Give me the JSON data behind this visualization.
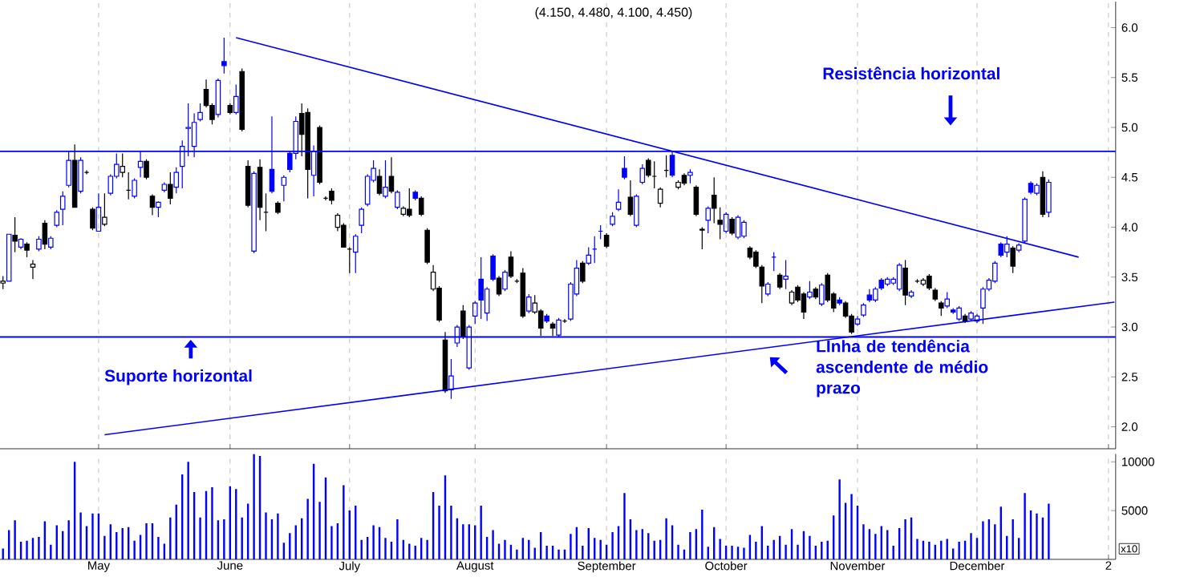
{
  "chart_data": [
    {
      "type": "candlestick",
      "title": "(4.150, 4.480, 4.100, 4.450)",
      "categories": [
        null,
        null,
        null,
        null,
        null,
        null,
        null,
        null,
        null,
        null,
        null,
        null,
        null,
        null,
        null,
        null,
        null,
        null,
        null,
        null,
        null,
        null,
        null,
        null,
        null,
        null,
        null,
        null,
        null,
        null,
        null,
        null,
        null,
        null,
        null,
        null,
        null,
        null,
        null,
        null,
        null,
        null,
        null,
        null,
        null,
        null,
        null,
        null,
        null,
        null,
        null,
        null,
        null,
        null,
        null,
        null,
        null,
        null,
        null,
        null,
        null,
        null,
        null,
        null,
        null,
        null,
        null,
        null,
        null,
        null,
        null,
        null,
        null,
        null,
        null,
        null,
        null,
        null,
        null,
        null,
        null,
        null,
        null,
        null,
        null,
        null,
        null,
        null,
        null,
        null,
        null,
        null,
        null,
        null,
        null,
        null,
        null,
        null,
        null,
        null,
        null,
        null,
        null,
        null,
        null,
        null,
        null,
        null,
        null,
        null,
        null,
        null,
        null,
        null,
        null,
        null,
        null,
        null,
        null,
        null,
        null,
        null,
        null,
        null,
        null,
        null,
        null,
        null,
        null,
        null,
        null,
        null,
        null,
        null,
        null,
        null,
        null,
        null,
        null,
        null,
        null,
        null,
        null,
        null,
        null,
        null,
        null,
        null,
        null,
        null,
        null,
        null,
        null,
        null,
        null,
        null,
        null,
        null,
        null,
        null,
        null,
        null,
        null,
        null,
        null,
        null,
        null,
        null,
        null,
        null,
        null,
        null,
        null,
        null,
        null,
        null,
        null,
        null,
        null,
        null,
        null,
        null,
        null,
        null,
        null,
        null,
        null
      ],
      "ohlc": [
        [
          3.44,
          3.51,
          3.38,
          3.46
        ],
        [
          3.46,
          3.93,
          3.46,
          3.93
        ],
        [
          3.92,
          4.1,
          3.75,
          3.86
        ],
        [
          3.8,
          3.89,
          3.78,
          3.88
        ],
        [
          3.83,
          3.85,
          3.7,
          3.77
        ],
        [
          3.6,
          3.67,
          3.48,
          3.63
        ],
        [
          3.78,
          3.91,
          3.76,
          3.88
        ],
        [
          4.04,
          4.07,
          3.78,
          3.83
        ],
        [
          3.8,
          3.91,
          3.78,
          3.89
        ],
        [
          4.02,
          4.17,
          4.0,
          4.15
        ],
        [
          4.18,
          4.36,
          4.02,
          4.31
        ],
        [
          4.42,
          4.76,
          4.4,
          4.67
        ],
        [
          4.67,
          4.83,
          4.2,
          4.2
        ],
        [
          4.36,
          4.7,
          4.34,
          4.67
        ],
        [
          4.55,
          4.57,
          4.53,
          4.55
        ],
        [
          4.18,
          4.2,
          3.97,
          3.99
        ],
        [
          3.96,
          4.34,
          3.96,
          4.2
        ],
        [
          4.03,
          4.34,
          4.01,
          4.1
        ],
        [
          4.34,
          4.53,
          4.32,
          4.51
        ],
        [
          4.51,
          4.74,
          4.49,
          4.63
        ],
        [
          4.55,
          4.74,
          4.5,
          4.61
        ],
        [
          4.37,
          4.55,
          4.28,
          4.37
        ],
        [
          4.31,
          4.49,
          4.29,
          4.47
        ],
        [
          4.6,
          4.76,
          4.5,
          4.66
        ],
        [
          4.66,
          4.68,
          4.48,
          4.5
        ],
        [
          4.31,
          4.33,
          4.12,
          4.2
        ],
        [
          4.2,
          4.26,
          4.1,
          4.25
        ],
        [
          4.37,
          4.45,
          4.35,
          4.43
        ],
        [
          4.43,
          4.55,
          4.23,
          4.29
        ],
        [
          4.4,
          4.6,
          4.34,
          4.55
        ],
        [
          4.61,
          4.87,
          4.39,
          4.81
        ],
        [
          4.99,
          5.24,
          4.71,
          5.0
        ],
        [
          4.81,
          5.14,
          4.7,
          5.05
        ],
        [
          5.08,
          5.24,
          5.06,
          5.15
        ],
        [
          5.38,
          5.48,
          5.2,
          5.22
        ],
        [
          5.22,
          5.24,
          5.03,
          5.08
        ],
        [
          5.13,
          5.49,
          5.1,
          5.47
        ],
        [
          5.66,
          5.9,
          5.54,
          5.62
        ],
        [
          5.22,
          5.24,
          5.13,
          5.15
        ],
        [
          5.15,
          5.43,
          5.13,
          5.31
        ],
        [
          5.56,
          5.59,
          4.96,
          4.98
        ],
        [
          4.61,
          4.67,
          4.2,
          4.22
        ],
        [
          3.76,
          4.56,
          3.74,
          4.54
        ],
        [
          4.6,
          4.68,
          4.07,
          4.2
        ],
        [
          4.15,
          4.34,
          3.96,
          4.15
        ],
        [
          4.58,
          5.11,
          4.34,
          4.36
        ],
        [
          4.24,
          4.26,
          4.13,
          4.15
        ],
        [
          4.42,
          4.52,
          4.26,
          4.5
        ],
        [
          4.74,
          4.76,
          4.55,
          4.58
        ],
        [
          4.74,
          5.11,
          4.68,
          5.06
        ],
        [
          5.14,
          5.24,
          4.71,
          4.93
        ],
        [
          5.15,
          5.19,
          4.29,
          4.58
        ],
        [
          4.52,
          4.82,
          4.31,
          4.76
        ],
        [
          5.0,
          5.02,
          4.43,
          4.45
        ],
        [
          4.29,
          4.31,
          4.27,
          4.29
        ],
        [
          4.36,
          4.39,
          4.23,
          4.27
        ],
        [
          4.0,
          4.14,
          3.96,
          4.12
        ],
        [
          4.02,
          4.04,
          3.8,
          3.8
        ],
        [
          3.78,
          3.8,
          3.54,
          3.78
        ],
        [
          3.75,
          3.93,
          3.54,
          3.91
        ],
        [
          4.02,
          4.2,
          3.94,
          4.18
        ],
        [
          4.23,
          4.53,
          4.21,
          4.51
        ],
        [
          4.47,
          4.67,
          4.45,
          4.59
        ],
        [
          4.51,
          4.58,
          4.32,
          4.34
        ],
        [
          4.31,
          4.67,
          4.29,
          4.4
        ],
        [
          4.51,
          4.7,
          4.34,
          4.36
        ],
        [
          4.2,
          4.37,
          4.18,
          4.35
        ],
        [
          4.13,
          4.21,
          4.11,
          4.19
        ],
        [
          4.18,
          4.39,
          4.1,
          4.12
        ],
        [
          4.35,
          4.37,
          4.27,
          4.29
        ],
        [
          4.29,
          4.31,
          4.11,
          4.13
        ],
        [
          3.97,
          3.99,
          3.63,
          3.65
        ],
        [
          3.38,
          3.62,
          3.36,
          3.55
        ],
        [
          3.39,
          3.41,
          3.05,
          3.07
        ],
        [
          2.87,
          2.95,
          2.34,
          2.36
        ],
        [
          2.37,
          2.68,
          2.28,
          2.51
        ],
        [
          2.84,
          3.02,
          2.8,
          3.0
        ],
        [
          3.16,
          3.22,
          2.88,
          2.9
        ],
        [
          2.59,
          3.02,
          2.57,
          3.0
        ],
        [
          3.11,
          3.26,
          3.03,
          3.24
        ],
        [
          3.48,
          3.7,
          3.08,
          3.27
        ],
        [
          3.14,
          3.4,
          3.06,
          3.38
        ],
        [
          3.71,
          3.73,
          3.46,
          3.48
        ],
        [
          3.49,
          3.51,
          3.31,
          3.33
        ],
        [
          3.38,
          3.57,
          3.36,
          3.55
        ],
        [
          3.7,
          3.76,
          3.49,
          3.51
        ],
        [
          3.46,
          3.48,
          3.44,
          3.46
        ],
        [
          3.54,
          3.59,
          3.09,
          3.11
        ],
        [
          3.16,
          3.33,
          3.14,
          3.3
        ],
        [
          3.15,
          3.32,
          3.13,
          3.24
        ],
        [
          3.16,
          3.18,
          2.91,
          2.99
        ],
        [
          3.11,
          3.13,
          3.04,
          3.06
        ],
        [
          3.03,
          3.05,
          2.91,
          2.99
        ],
        [
          2.92,
          3.09,
          2.9,
          3.07
        ],
        [
          3.06,
          3.08,
          3.04,
          3.06
        ],
        [
          3.08,
          3.45,
          3.06,
          3.43
        ],
        [
          3.33,
          3.67,
          3.31,
          3.59
        ],
        [
          3.64,
          3.66,
          3.44,
          3.46
        ],
        [
          3.64,
          3.8,
          3.62,
          3.72
        ],
        [
          3.78,
          3.91,
          3.64,
          3.78
        ],
        [
          3.96,
          4.02,
          3.88,
          3.96
        ],
        [
          3.92,
          3.94,
          3.79,
          3.81
        ],
        [
          4.03,
          4.15,
          4.01,
          4.11
        ],
        [
          4.18,
          4.38,
          4.16,
          4.25
        ],
        [
          4.59,
          4.71,
          4.48,
          4.5
        ],
        [
          4.3,
          4.47,
          4.11,
          4.13
        ],
        [
          4.02,
          4.33,
          4.0,
          4.31
        ],
        [
          4.45,
          4.63,
          4.43,
          4.59
        ],
        [
          4.67,
          4.69,
          4.5,
          4.52
        ],
        [
          4.51,
          4.66,
          4.39,
          4.51
        ],
        [
          4.24,
          4.4,
          4.2,
          4.38
        ],
        [
          4.57,
          4.72,
          4.5,
          4.57
        ],
        [
          4.72,
          4.76,
          4.5,
          4.52
        ],
        [
          4.4,
          4.47,
          4.38,
          4.45
        ],
        [
          4.52,
          4.54,
          4.42,
          4.44
        ],
        [
          4.52,
          4.58,
          4.44,
          4.55
        ],
        [
          4.4,
          4.42,
          4.11,
          4.13
        ],
        [
          3.98,
          4.0,
          3.78,
          3.97
        ],
        [
          4.07,
          4.21,
          3.94,
          4.19
        ],
        [
          4.32,
          4.5,
          4.04,
          4.19
        ],
        [
          4.07,
          4.2,
          3.88,
          4.03
        ],
        [
          3.96,
          4.15,
          3.94,
          4.13
        ],
        [
          4.08,
          4.1,
          3.92,
          3.94
        ],
        [
          3.9,
          4.12,
          3.88,
          4.1
        ],
        [
          3.91,
          4.07,
          3.89,
          4.05
        ],
        [
          3.79,
          3.81,
          3.68,
          3.7
        ],
        [
          3.75,
          3.77,
          3.59,
          3.61
        ],
        [
          3.6,
          3.62,
          3.24,
          3.41
        ],
        [
          3.33,
          3.45,
          3.31,
          3.43
        ],
        [
          3.7,
          3.75,
          3.56,
          3.7
        ],
        [
          3.52,
          3.54,
          3.38,
          3.4
        ],
        [
          3.48,
          3.67,
          3.38,
          3.51
        ],
        [
          3.24,
          3.37,
          3.22,
          3.35
        ],
        [
          3.4,
          3.42,
          3.25,
          3.27
        ],
        [
          3.33,
          3.35,
          3.08,
          3.15
        ],
        [
          3.3,
          3.46,
          3.28,
          3.35
        ],
        [
          3.38,
          3.4,
          3.28,
          3.3
        ],
        [
          3.23,
          3.44,
          3.21,
          3.42
        ],
        [
          3.52,
          3.54,
          3.25,
          3.27
        ],
        [
          3.33,
          3.35,
          3.15,
          3.19
        ],
        [
          3.27,
          3.3,
          3.22,
          3.24
        ],
        [
          3.24,
          3.26,
          3.09,
          3.11
        ],
        [
          3.11,
          3.13,
          2.93,
          2.95
        ],
        [
          3.03,
          3.11,
          3.01,
          3.08
        ],
        [
          3.12,
          3.24,
          3.1,
          3.22
        ],
        [
          3.32,
          3.38,
          3.25,
          3.27
        ],
        [
          3.27,
          3.4,
          3.25,
          3.38
        ],
        [
          3.47,
          3.49,
          3.37,
          3.39
        ],
        [
          3.43,
          3.5,
          3.41,
          3.48
        ],
        [
          3.44,
          3.5,
          3.42,
          3.48
        ],
        [
          3.38,
          3.64,
          3.36,
          3.62
        ],
        [
          3.59,
          3.67,
          3.22,
          3.32
        ],
        [
          3.31,
          3.37,
          3.29,
          3.35
        ],
        [
          3.46,
          3.48,
          3.44,
          3.46
        ],
        [
          3.43,
          3.49,
          3.41,
          3.47
        ],
        [
          3.51,
          3.53,
          3.37,
          3.39
        ],
        [
          3.37,
          3.39,
          3.26,
          3.28
        ],
        [
          3.24,
          3.26,
          3.11,
          3.19
        ],
        [
          3.21,
          3.35,
          3.19,
          3.28
        ],
        [
          3.17,
          3.19,
          3.13,
          3.15
        ],
        [
          3.08,
          3.21,
          3.06,
          3.19
        ],
        [
          3.11,
          3.13,
          3.04,
          3.06
        ],
        [
          3.08,
          3.16,
          3.06,
          3.14
        ],
        [
          3.06,
          3.13,
          3.04,
          3.11
        ],
        [
          3.19,
          3.4,
          3.03,
          3.38
        ],
        [
          3.38,
          3.49,
          3.36,
          3.47
        ],
        [
          3.46,
          3.66,
          3.44,
          3.64
        ],
        [
          3.83,
          3.85,
          3.7,
          3.72
        ],
        [
          3.75,
          3.91,
          3.7,
          3.83
        ],
        [
          3.79,
          3.81,
          3.54,
          3.61
        ],
        [
          3.77,
          3.84,
          3.75,
          3.82
        ],
        [
          3.86,
          4.3,
          3.84,
          4.28
        ],
        [
          4.44,
          4.46,
          4.33,
          4.35
        ],
        [
          4.34,
          4.44,
          4.32,
          4.42
        ],
        [
          4.5,
          4.56,
          4.1,
          4.13
        ],
        [
          4.15,
          4.48,
          4.1,
          4.45
        ],
        null,
        null,
        null,
        null,
        null,
        null,
        null,
        null,
        null,
        null,
        null
      ],
      "colors": [
        "#000000",
        "#0000ff",
        "#000000",
        "#0000ff",
        "#000000",
        "#000000",
        "#0000ff",
        "#000000",
        "#0000ff",
        "#0000ff",
        "#0000ff",
        "#0000ff",
        "#000000",
        "#0000ff",
        "#000000",
        "#000000",
        "#0000ff",
        "#000000",
        "#0000ff",
        "#0000ff",
        "#000000",
        "#000000",
        "#0000ff",
        "#0000ff",
        "#000000",
        "#000000",
        "#0000ff",
        "#0000ff",
        "#000000",
        "#0000ff",
        "#0000ff",
        "#0000ff",
        "#0000ff",
        "#0000ff",
        "#000000",
        "#000000",
        "#0000ff",
        "#0000ff",
        "#000000",
        "#0000ff",
        "#000000",
        "#000000",
        "#0000ff",
        "#000000",
        "#000000",
        "#0000ff",
        "#000000",
        "#0000ff",
        "#0000ff",
        "#0000ff",
        "#000000",
        "#000000",
        "#0000ff",
        "#000000",
        "#000000",
        "#000000",
        "#000000",
        "#000000",
        "#000000",
        "#0000ff",
        "#0000ff",
        "#0000ff",
        "#0000ff",
        "#000000",
        "#0000ff",
        "#000000",
        "#0000ff",
        "#000000",
        "#000000",
        "#0000ff",
        "#000000",
        "#000000",
        "#000000",
        "#000000",
        "#000000",
        "#0000ff",
        "#0000ff",
        "#000000",
        "#0000ff",
        "#0000ff",
        "#0000ff",
        "#0000ff",
        "#0000ff",
        "#000000",
        "#0000ff",
        "#000000",
        "#000000",
        "#000000",
        "#0000ff",
        "#000000",
        "#000000",
        "#0000ff",
        "#000000",
        "#0000ff",
        "#000000",
        "#0000ff",
        "#0000ff",
        "#000000",
        "#0000ff",
        "#0000ff",
        "#0000ff",
        "#000000",
        "#0000ff",
        "#0000ff",
        "#0000ff",
        "#000000",
        "#0000ff",
        "#0000ff",
        "#000000",
        "#000000",
        "#000000",
        "#000000",
        "#0000ff",
        "#000000",
        "#000000",
        "#0000ff",
        "#000000",
        "#000000",
        "#0000ff",
        "#000000",
        "#000000",
        "#0000ff",
        "#000000",
        "#0000ff",
        "#0000ff",
        "#000000",
        "#000000",
        "#000000",
        "#0000ff",
        "#0000ff",
        "#000000",
        "#0000ff",
        "#000000",
        "#000000",
        "#000000",
        "#0000ff",
        "#000000",
        "#0000ff",
        "#000000",
        "#000000",
        "#0000ff",
        "#000000",
        "#000000",
        "#0000ff",
        "#0000ff",
        "#0000ff",
        "#0000ff",
        "#0000ff",
        "#0000ff",
        "#0000ff",
        "#0000ff",
        "#000000",
        "#0000ff",
        "#000000",
        "#000000",
        "#000000",
        "#000000",
        "#000000",
        "#0000ff",
        "#0000ff",
        "#0000ff",
        "#000000",
        "#0000ff",
        "#0000ff",
        "#0000ff",
        "#0000ff",
        "#0000ff",
        "#0000ff",
        "#0000ff",
        "#000000",
        "#0000ff",
        "#0000ff",
        "#0000ff",
        "#0000ff",
        "#000000",
        "#0000ff",
        null,
        null,
        null,
        null,
        null,
        null,
        null,
        null,
        null,
        null,
        null
      ],
      "ylim": [
        1.78,
        6.26
      ],
      "yticks": [
        {
          "value": 2.0,
          "label": "2.0"
        },
        {
          "value": 2.5,
          "label": "2.5"
        },
        {
          "value": 3.0,
          "label": "3.0"
        },
        {
          "value": 3.5,
          "label": "3.5"
        },
        {
          "value": 4.0,
          "label": "4.0"
        },
        {
          "value": 4.5,
          "label": "4.5"
        },
        {
          "value": 5.0,
          "label": "5.0"
        },
        {
          "value": 5.5,
          "label": "5.5"
        },
        {
          "value": 6.0,
          "label": "6.0"
        }
      ],
      "grid": "x",
      "tick_labels": "y",
      "ref_lines": [
        {
          "axis": "y",
          "value": 4.76,
          "label": "Resistência horizontal",
          "color": "#0000ff"
        },
        {
          "axis": "y",
          "value": 2.9,
          "label": "Suporte horizontal",
          "color": "#0000ff"
        }
      ],
      "series": [
        {
          "type": "line",
          "values": [
            null,
            null,
            null,
            null,
            null,
            null,
            null,
            null,
            null,
            null,
            null,
            null,
            null,
            null,
            null,
            null,
            null,
            null,
            null,
            null,
            null,
            null,
            null,
            null,
            null,
            null,
            null,
            null,
            null,
            null,
            null,
            null,
            null,
            null,
            null,
            null,
            null,
            null,
            null,
            5.9,
            null,
            null,
            null,
            null,
            null,
            null,
            null,
            null,
            null,
            null,
            null,
            null,
            null,
            null,
            null,
            null,
            null,
            null,
            null,
            null,
            null,
            null,
            null,
            null,
            null,
            null,
            null,
            null,
            null,
            null,
            null,
            null,
            null,
            null,
            null,
            null,
            null,
            null,
            null,
            null,
            null,
            null,
            null,
            null,
            null,
            null,
            null,
            null,
            null,
            null,
            null,
            null,
            null,
            null,
            null,
            null,
            null,
            null,
            null,
            null,
            null,
            null,
            null,
            null,
            null,
            null,
            null,
            null,
            null,
            null,
            null,
            null,
            null,
            null,
            null,
            null,
            null,
            null,
            null,
            null,
            null,
            null,
            null,
            null,
            null,
            null,
            null,
            null,
            null,
            null,
            null,
            null,
            null,
            null,
            null,
            null,
            null,
            null,
            null,
            null,
            null,
            null,
            null,
            null,
            null,
            null,
            null,
            null,
            null,
            null,
            null,
            null,
            null,
            null,
            null,
            null,
            null,
            null,
            null,
            null,
            null,
            null,
            null,
            null,
            null,
            null,
            null,
            null,
            null,
            null,
            null,
            null,
            null,
            null,
            null,
            null,
            null,
            null,
            null,
            null,
            3.7,
            null,
            null,
            null,
            null,
            null,
            null
          ],
          "color": "#0000ff"
        },
        {
          "type": "line",
          "values": [
            null,
            null,
            null,
            null,
            null,
            null,
            null,
            null,
            null,
            null,
            null,
            null,
            null,
            null,
            null,
            null,
            null,
            1.92,
            null,
            null,
            null,
            null,
            null,
            null,
            null,
            null,
            null,
            null,
            null,
            null,
            null,
            null,
            null,
            null,
            null,
            null,
            null,
            null,
            null,
            null,
            null,
            null,
            null,
            null,
            null,
            null,
            null,
            null,
            null,
            null,
            null,
            null,
            null,
            null,
            null,
            null,
            null,
            null,
            null,
            null,
            null,
            null,
            null,
            null,
            null,
            null,
            null,
            null,
            null,
            null,
            null,
            null,
            null,
            null,
            null,
            null,
            null,
            null,
            null,
            null,
            null,
            null,
            null,
            null,
            null,
            null,
            null,
            null,
            null,
            null,
            null,
            null,
            null,
            null,
            null,
            null,
            null,
            null,
            null,
            null,
            null,
            null,
            null,
            null,
            null,
            null,
            null,
            null,
            null,
            null,
            null,
            null,
            null,
            null,
            null,
            null,
            null,
            null,
            null,
            null,
            null,
            null,
            null,
            null,
            null,
            null,
            null,
            null,
            null,
            null,
            null,
            null,
            null,
            null,
            null,
            null,
            null,
            null,
            null,
            null,
            null,
            null,
            null,
            null,
            null,
            null,
            null,
            null,
            null,
            null,
            null,
            null,
            null,
            null,
            null,
            null,
            null,
            null,
            null,
            null,
            null,
            null,
            null,
            null,
            null,
            null,
            null,
            null,
            null,
            null,
            null,
            null,
            null,
            null,
            null,
            null,
            null,
            null,
            null,
            null,
            null,
            null,
            null,
            null,
            null,
            null,
            3.25
          ],
          "color": "#0000ff"
        }
      ],
      "annotations": [
        "LInha de tendência ascendente de médio prazo"
      ]
    },
    {
      "type": "bar",
      "categories": [
        null,
        null,
        null,
        null,
        null,
        null,
        null,
        null,
        null,
        null,
        null,
        null,
        null,
        null,
        null,
        null,
        "May",
        null,
        null,
        null,
        null,
        null,
        null,
        null,
        null,
        null,
        null,
        null,
        null,
        null,
        null,
        null,
        null,
        null,
        null,
        null,
        null,
        null,
        "June",
        null,
        null,
        null,
        null,
        null,
        null,
        null,
        null,
        null,
        null,
        null,
        null,
        null,
        null,
        null,
        null,
        null,
        null,
        null,
        "July",
        null,
        null,
        null,
        null,
        null,
        null,
        null,
        null,
        null,
        null,
        null,
        null,
        null,
        null,
        null,
        null,
        null,
        null,
        null,
        null,
        "August",
        null,
        null,
        null,
        null,
        null,
        null,
        null,
        null,
        null,
        null,
        null,
        null,
        null,
        null,
        null,
        null,
        null,
        null,
        null,
        null,
        null,
        "September",
        null,
        null,
        null,
        null,
        null,
        null,
        null,
        null,
        null,
        null,
        null,
        null,
        null,
        null,
        null,
        null,
        null,
        null,
        null,
        "October",
        null,
        null,
        null,
        null,
        null,
        null,
        null,
        null,
        null,
        null,
        null,
        null,
        null,
        null,
        null,
        null,
        null,
        null,
        null,
        null,
        null,
        "November",
        null,
        null,
        null,
        null,
        null,
        null,
        null,
        null,
        null,
        null,
        null,
        null,
        null,
        null,
        null,
        null,
        null,
        null,
        null,
        "December",
        null,
        null,
        null,
        null,
        null,
        null,
        null,
        null,
        null,
        null,
        null,
        null,
        null,
        null,
        null,
        null,
        null,
        null,
        null,
        null,
        null,
        "2",
        null
      ],
      "values": [
        1100,
        3000,
        4000,
        1800,
        1900,
        2200,
        2300,
        3900,
        1500,
        3500,
        2900,
        4000,
        10000,
        4800,
        3400,
        4700,
        4700,
        2400,
        3600,
        2800,
        3200,
        3300,
        1900,
        2500,
        3700,
        3700,
        2300,
        1600,
        4300,
        5600,
        8700,
        10000,
        6900,
        4300,
        7000,
        7400,
        4000,
        4100,
        7500,
        7200,
        4300,
        5700,
        10800,
        10600,
        4800,
        4100,
        4700,
        1700,
        2700,
        3500,
        4200,
        6200,
        9800,
        5900,
        8400,
        3400,
        3700,
        7600,
        5000,
        5500,
        2000,
        2300,
        3500,
        3300,
        2200,
        1800,
        4100,
        2000,
        1600,
        1400,
        2200,
        2000,
        6900,
        5500,
        8600,
        5500,
        4200,
        3600,
        3600,
        3500,
        5500,
        2300,
        3000,
        1600,
        2000,
        1500,
        1000,
        2200,
        2000,
        1200,
        2800,
        1400,
        1400,
        1000,
        1000,
        2600,
        3300,
        1400,
        3200,
        2200,
        2000,
        1500,
        2800,
        3400,
        6800,
        4100,
        3000,
        3100,
        2700,
        1900,
        2000,
        4200,
        3500,
        1500,
        1000,
        2800,
        3100,
        5100,
        1300,
        3300,
        2100,
        1400,
        1400,
        1300,
        1200,
        2500,
        1800,
        3400,
        1400,
        2000,
        2400,
        1500,
        3100,
        1500,
        2900,
        2400,
        1400,
        1800,
        1900,
        4500,
        8200,
        5800,
        6700,
        5500,
        3600,
        3100,
        2600,
        3400,
        3000,
        1400,
        3200,
        4100,
        4300,
        2100,
        1900,
        1800,
        1500,
        1900,
        2100,
        1100,
        1800,
        1900,
        2700,
        2200,
        3900,
        4100,
        3600,
        5400,
        2400,
        4100,
        2200,
        6800,
        5000,
        4700,
        4300,
        5700,
        null,
        null,
        null,
        null,
        null,
        null,
        null,
        null,
        null,
        null,
        null
      ],
      "color": "#0000ff",
      "ylim": [
        0,
        10800
      ],
      "yticks": [
        5000,
        10000
      ],
      "grid": "x",
      "annotations": [
        "x10"
      ]
    }
  ]
}
